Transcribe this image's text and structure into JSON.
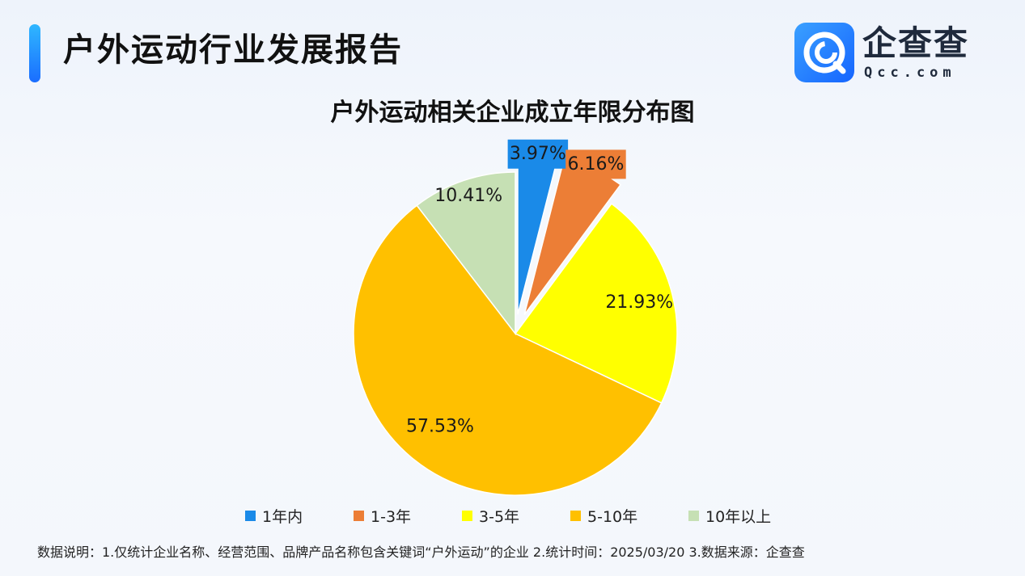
{
  "header": {
    "title": "户外运动行业发展报告"
  },
  "logo": {
    "name": "企查查",
    "domain": "Qcc.com"
  },
  "chart_data": {
    "type": "pie",
    "title": "户外运动相关企业成立年限分布图",
    "categories": [
      "1年内",
      "1-3年",
      "3-5年",
      "5-10年",
      "10年以上"
    ],
    "values": [
      3.97,
      6.16,
      21.93,
      57.53,
      10.41
    ],
    "value_labels": [
      "3.97%",
      "6.16%",
      "21.93%",
      "57.53%",
      "10.41%"
    ],
    "colors": [
      "#1a8ae8",
      "#ec7e36",
      "#ffff00",
      "#ffc000",
      "#c6e0b4"
    ],
    "legend_position": "bottom"
  },
  "footnote": {
    "text": "数据说明：1.仅统计企业名称、经营范围、品牌产品名称包含关键词“户外运动”的企业   2.统计时间：2025/03/20    3.数据来源：企查查"
  }
}
